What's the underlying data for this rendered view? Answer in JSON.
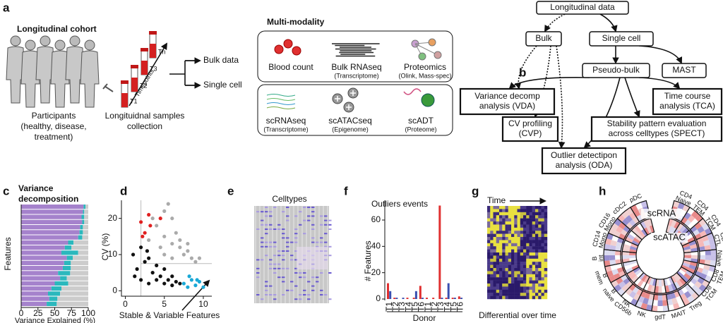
{
  "panels": {
    "a": {
      "label": "a",
      "cohort_title": "Longitudinal cohort",
      "participants": [
        "Participants",
        "(healthy, disease,",
        "treatment)"
      ],
      "samples": [
        "Longituidnal samples",
        "collection"
      ],
      "timepoints": "Timepoints",
      "tubes": [
        "T1",
        "T2",
        "T3",
        "Tn"
      ],
      "outputs": [
        "Bulk data",
        "Single cell"
      ],
      "modality_title": "Multi-modality",
      "bulk": [
        {
          "name": "Blood count"
        },
        {
          "name": "Bulk RNAseq",
          "sub": "(Transcriptome)"
        },
        {
          "name": "Proteomics",
          "sub": "(Olink, Mass-spec)"
        }
      ],
      "single_cell": [
        {
          "name": "scRNAseq",
          "sub": "(Transcriptome)"
        },
        {
          "name": "scATACseq",
          "sub": "(Epigenome)"
        },
        {
          "name": "scADT",
          "sub": "(Proteome)"
        }
      ]
    },
    "b": {
      "label": "b",
      "nodes": [
        {
          "lines": [
            "Longitudinal data"
          ]
        },
        {
          "lines": [
            "Bulk"
          ]
        },
        {
          "lines": [
            "Single cell"
          ]
        },
        {
          "lines": [
            "Pseudo-bulk"
          ]
        },
        {
          "lines": [
            "MAST"
          ]
        },
        {
          "lines": [
            "Variance decomp",
            "analysis (VDA)"
          ]
        },
        {
          "lines": [
            "Time course",
            "analysis (TCA)"
          ]
        },
        {
          "lines": [
            "CV profiling",
            "(CVP)"
          ]
        },
        {
          "lines": [
            "Stability pattern evaluation",
            "across celltypes (SPECT)"
          ]
        },
        {
          "lines": [
            "Outlier detectipon",
            "analysis (ODA)"
          ]
        }
      ]
    },
    "e": {
      "label": "e",
      "title": "Celltypes"
    },
    "g": {
      "label": "g",
      "time": "Time",
      "caption": "Differential over time"
    },
    "h": {
      "label": "h",
      "rings": [
        "scRNA",
        "scATAC"
      ],
      "celltypes": [
        [
          "CD4",
          "Naive"
        ],
        [
          "CD4",
          "TEM"
        ],
        [
          "CD4",
          "TCM"
        ],
        [
          "CD4",
          "CTL"
        ],
        [
          "CD8",
          "Naive"
        ],
        [
          "CD8",
          "TEM"
        ],
        [
          "CD8",
          "TCM"
        ],
        [
          "Treg"
        ],
        [
          "MAIT"
        ],
        [
          "gdT"
        ],
        [
          "NK"
        ],
        [
          "NK",
          "CD56b"
        ],
        [
          "B",
          "naive"
        ],
        [
          "B",
          "mem"
        ],
        [
          "B",
          "int"
        ],
        [
          "CD14",
          "Mono"
        ],
        [
          "CD16",
          "Mono"
        ],
        [
          "cDC2"
        ],
        [
          "pDC"
        ]
      ]
    }
  },
  "chart_data": [
    {
      "type": "bar",
      "label": "c",
      "title": [
        "Variance",
        "decomposition"
      ],
      "orientation": "horizontal",
      "stacked": true,
      "xlabel": "Variance Explained (%)",
      "ylabel": "Features",
      "xlim": [
        0,
        100
      ],
      "xticks": [
        0,
        25,
        50,
        75,
        100
      ],
      "series": [
        {
          "color": "#a582cc",
          "values": [
            93,
            92,
            90,
            91,
            88,
            87,
            85,
            70,
            65,
            60,
            68,
            64,
            62,
            55,
            58,
            50,
            45,
            40,
            42,
            38
          ]
        },
        {
          "color": "#2bb8bd",
          "values": [
            3,
            2,
            4,
            3,
            4,
            5,
            6,
            8,
            10,
            25,
            9,
            10,
            12,
            18,
            10,
            20,
            15,
            18,
            12,
            15
          ]
        },
        {
          "color": "#cccccc",
          "values": [
            4,
            6,
            6,
            6,
            8,
            8,
            9,
            22,
            25,
            15,
            23,
            26,
            26,
            27,
            32,
            30,
            40,
            42,
            46,
            47
          ]
        }
      ]
    },
    {
      "type": "scatter",
      "label": "d",
      "xlabel": "Stable & Variable Features",
      "ylabel": "CV (%)",
      "xlim": [
        -0.5,
        11
      ],
      "ylim": [
        -1.5,
        25
      ],
      "xticks": [
        0,
        5,
        10
      ],
      "yticks": [
        0,
        10,
        20
      ],
      "series": [
        {
          "color": "#aaaaaa",
          "x": [
            3,
            4,
            5,
            5.5,
            6,
            6.5,
            7,
            7.5,
            8,
            8.5,
            9,
            4.5,
            5,
            6,
            7,
            3.5,
            8,
            9.5,
            6,
            5
          ],
          "values": [
            14,
            18,
            22,
            24,
            20,
            16,
            12,
            10,
            11,
            9,
            8,
            12,
            15,
            13,
            14,
            20,
            13,
            9,
            9,
            10
          ]
        },
        {
          "color": "#111111",
          "x": [
            1,
            1.5,
            2,
            2.5,
            3,
            3.5,
            4,
            4.5,
            5,
            5.5,
            6,
            6.5,
            7,
            2,
            3,
            4,
            5,
            1.2,
            2.8,
            6
          ],
          "values": [
            10,
            6,
            12,
            8,
            9,
            5,
            7,
            4,
            6,
            3,
            4,
            2.5,
            2,
            3,
            2,
            3,
            2,
            4,
            11,
            1.5
          ]
        },
        {
          "color": "#e02020",
          "x": [
            2,
            2.5,
            3,
            3.2,
            2.2,
            4.5
          ],
          "values": [
            19,
            16,
            21,
            18,
            15,
            20
          ]
        },
        {
          "color": "#19a8d6",
          "x": [
            7.5,
            8,
            8.5,
            9,
            9.5,
            10,
            8.2,
            9.2
          ],
          "values": [
            2,
            1,
            3,
            1.5,
            2.5,
            1,
            4,
            3
          ]
        }
      ]
    },
    {
      "type": "bar",
      "label": "f",
      "title": "Outliers events",
      "xlabel": "Donor",
      "ylabel": "# Features",
      "categories": [
        "T1",
        "T2",
        "T3",
        "T4",
        "T5",
        "T6",
        "T1",
        "T2",
        "T3",
        "T4",
        "T5",
        "T6"
      ],
      "ylim": [
        0,
        75
      ],
      "yticks": [
        0,
        20,
        40,
        60
      ],
      "series": [
        {
          "color": "#e03030",
          "values": [
            12,
            1,
            0,
            1,
            1,
            10,
            1,
            1,
            71,
            1,
            1,
            2
          ]
        },
        {
          "color": "#3a4fb0",
          "values": [
            6,
            1,
            1,
            0,
            6,
            1,
            0,
            0,
            1,
            12,
            1,
            1
          ]
        }
      ]
    }
  ]
}
